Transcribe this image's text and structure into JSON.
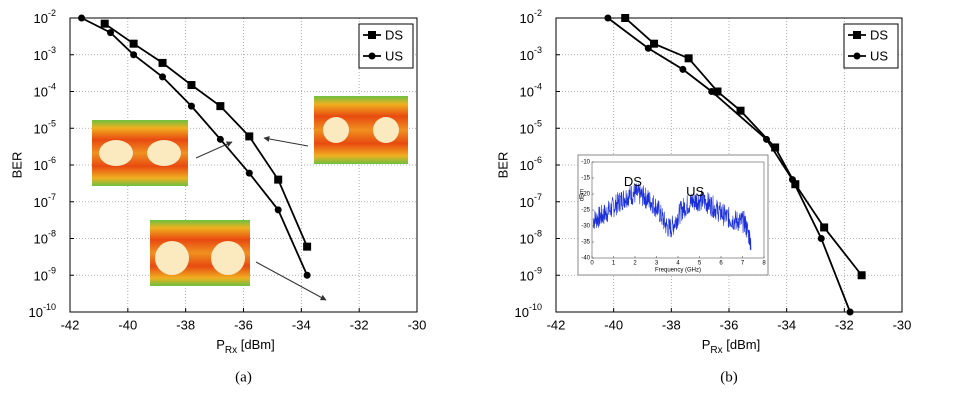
{
  "chart_data": [
    {
      "type": "line",
      "caption": "(a)",
      "ylabel": "BER",
      "xlabel": {
        "main": "P",
        "sub": "Rx",
        "unit": "[dBm]"
      },
      "log_y": true,
      "grid": true,
      "legend": "upper right",
      "xlim": [
        -42,
        -30
      ],
      "xticks": [
        -42,
        -40,
        -38,
        -36,
        -34,
        -32,
        -30
      ],
      "ylim": [
        1e-10,
        0.01
      ],
      "yticks": [
        {
          "value": 1e-10,
          "label": "10",
          "exp": "-10"
        },
        {
          "value": 1e-09,
          "label": "10",
          "exp": "-9"
        },
        {
          "value": 1e-08,
          "label": "10",
          "exp": "-8"
        },
        {
          "value": 1e-07,
          "label": "10",
          "exp": "-7"
        },
        {
          "value": 1e-06,
          "label": "10",
          "exp": "-6"
        },
        {
          "value": 1e-05,
          "label": "10",
          "exp": "-5"
        },
        {
          "value": 0.0001,
          "label": "10",
          "exp": "-4"
        },
        {
          "value": 0.001,
          "label": "10",
          "exp": "-3"
        },
        {
          "value": 0.01,
          "label": "10",
          "exp": "-2"
        }
      ],
      "series": [
        {
          "name": "DS",
          "color": "#000000",
          "marker": "square",
          "x": [
            -40.8,
            -39.8,
            -38.8,
            -37.8,
            -36.8,
            -35.8,
            -34.8,
            -33.8
          ],
          "values": [
            0.007,
            0.002,
            0.0006,
            0.00015,
            4e-05,
            6e-06,
            4e-07,
            6e-09
          ]
        },
        {
          "name": "US",
          "color": "#000000",
          "marker": "circle",
          "x": [
            -41.6,
            -40.6,
            -39.8,
            -38.8,
            -37.8,
            -36.8,
            -35.8,
            -34.8,
            -33.8
          ],
          "values": [
            0.01,
            0.004,
            0.001,
            0.00025,
            4e-05,
            5e-06,
            6e-07,
            6e-08,
            1e-09
          ]
        }
      ]
    },
    {
      "type": "line",
      "caption": "(b)",
      "ylabel": "BER",
      "xlabel": {
        "main": "P",
        "sub": "Rx",
        "unit": "[dBm]"
      },
      "log_y": true,
      "grid": true,
      "legend": "upper right",
      "xlim": [
        -42,
        -30
      ],
      "xticks": [
        -42,
        -40,
        -38,
        -36,
        -34,
        -32,
        -30
      ],
      "ylim": [
        1e-10,
        0.01
      ],
      "yticks": [
        {
          "value": 1e-10,
          "label": "10",
          "exp": "-10"
        },
        {
          "value": 1e-09,
          "label": "10",
          "exp": "-9"
        },
        {
          "value": 1e-08,
          "label": "10",
          "exp": "-8"
        },
        {
          "value": 1e-07,
          "label": "10",
          "exp": "-7"
        },
        {
          "value": 1e-06,
          "label": "10",
          "exp": "-6"
        },
        {
          "value": 1e-05,
          "label": "10",
          "exp": "-5"
        },
        {
          "value": 0.0001,
          "label": "10",
          "exp": "-4"
        },
        {
          "value": 0.001,
          "label": "10",
          "exp": "-3"
        },
        {
          "value": 0.01,
          "label": "10",
          "exp": "-2"
        }
      ],
      "series": [
        {
          "name": "DS",
          "color": "#000000",
          "marker": "square",
          "x": [
            -39.6,
            -38.6,
            -37.4,
            -36.4,
            -35.6,
            -34.4,
            -33.7,
            -32.7,
            -31.4
          ],
          "values": [
            0.01,
            0.002,
            0.0008,
            0.0001,
            3e-05,
            3e-06,
            3e-07,
            2e-08,
            1e-09
          ]
        },
        {
          "name": "US",
          "color": "#000000",
          "marker": "circle",
          "x": [
            -40.2,
            -38.8,
            -37.6,
            -36.6,
            -34.7,
            -33.8,
            -32.8,
            -31.8
          ],
          "values": [
            0.01,
            0.0015,
            0.0004,
            0.0001,
            5e-06,
            4e-07,
            1e-08,
            1e-10
          ]
        }
      ]
    },
    {
      "type": "spectrum",
      "ylabel": "dBm",
      "xlabel": "Frequency (GHz)",
      "color": "#1a2fd8",
      "annotations": [
        "DS",
        "US"
      ],
      "xlim": [
        0,
        8
      ],
      "xticks": [
        0,
        1,
        2,
        3,
        4,
        5,
        6,
        7,
        8
      ],
      "ylim": [
        -40,
        -10
      ],
      "yticks": [
        -10,
        -15,
        -20,
        -25,
        -30,
        -35,
        -40
      ]
    }
  ]
}
